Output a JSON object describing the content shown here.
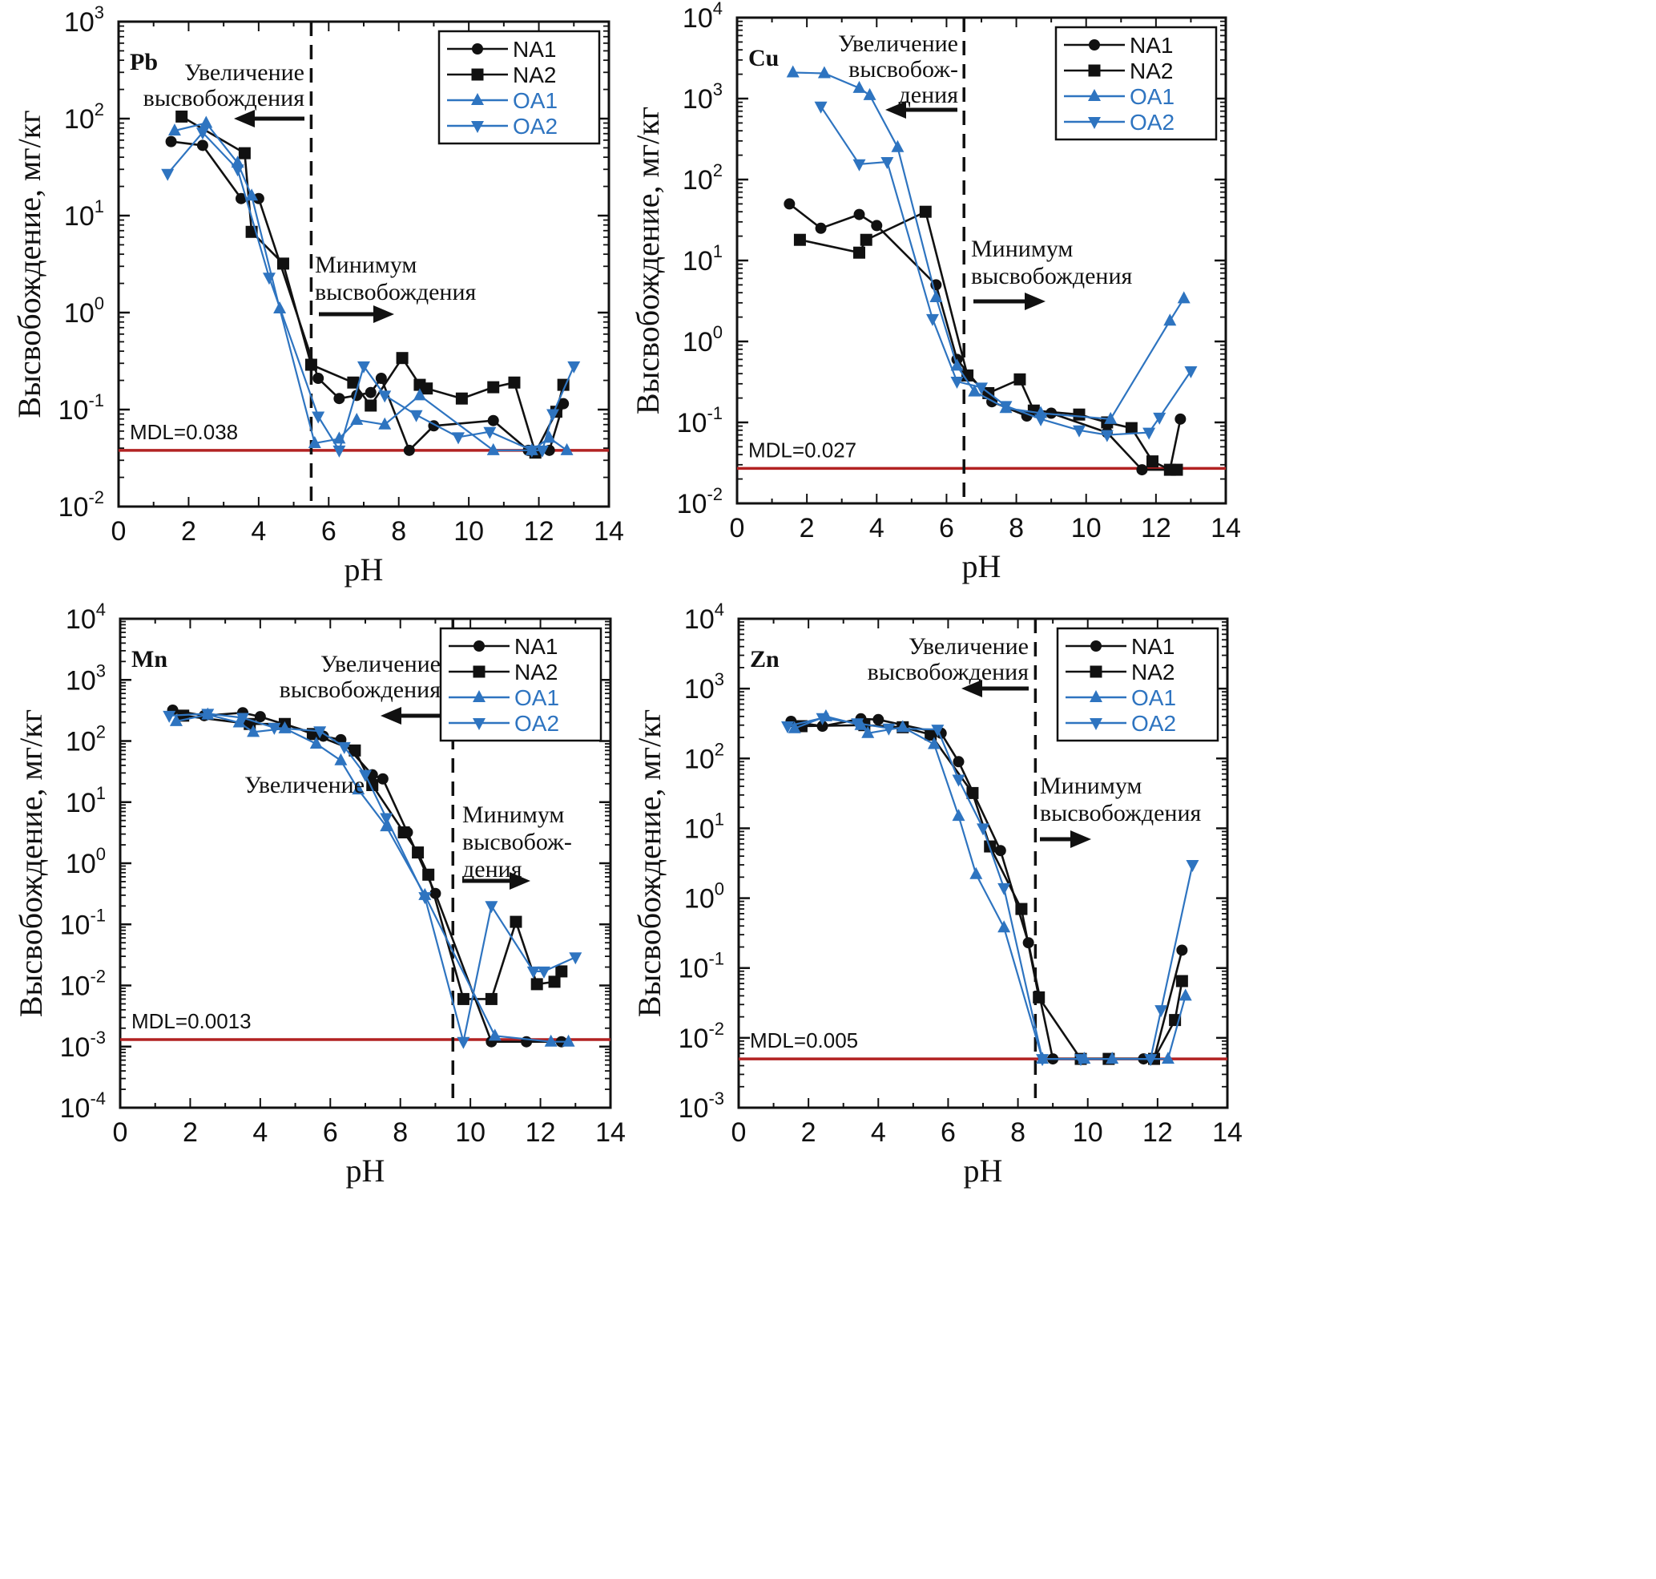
{
  "figure": {
    "stray_label": "Увеличение"
  },
  "chart_data": [
    {
      "type": "line",
      "panel": "Pb",
      "xlabel": "pH",
      "ylabel": "Высвобождение, мг/кг",
      "xscale": "linear",
      "yscale": "log",
      "xlim": [
        0,
        14
      ],
      "xticks": [
        0,
        2,
        4,
        6,
        8,
        10,
        12,
        14
      ],
      "ylim_exp": [
        -2,
        3
      ],
      "mdl": {
        "label": "MDL=0.038",
        "value": 0.038,
        "color": "#b22222"
      },
      "divider_ph": 5.5,
      "annotations": {
        "increase": [
          "Увеличение",
          "высвобождения"
        ],
        "minimum": [
          "Минимум",
          "высвобождения"
        ]
      },
      "legend": {
        "position": "top-right"
      },
      "series": [
        {
          "name": "NA1",
          "color": "#111111",
          "marker": "circle",
          "x": [
            1.5,
            2.4,
            3.5,
            4.0,
            5.7,
            6.3,
            6.8,
            7.2,
            7.5,
            8.3,
            9.0,
            10.7,
            11.7,
            12.3,
            12.7
          ],
          "y": [
            58,
            53,
            15,
            15,
            0.21,
            0.13,
            0.14,
            0.15,
            0.21,
            0.038,
            0.068,
            0.077,
            0.038,
            0.038,
            0.115
          ]
        },
        {
          "name": "NA2",
          "color": "#111111",
          "marker": "square",
          "x": [
            1.8,
            3.6,
            3.8,
            4.7,
            5.5,
            6.7,
            7.2,
            8.1,
            8.6,
            8.8,
            9.8,
            10.7,
            11.3,
            11.9,
            12.5,
            12.7
          ],
          "y": [
            105,
            44,
            6.8,
            3.2,
            0.29,
            0.19,
            0.11,
            0.34,
            0.18,
            0.165,
            0.13,
            0.17,
            0.19,
            0.036,
            0.095,
            0.18
          ]
        },
        {
          "name": "OA1",
          "color": "#2e74c0",
          "marker": "triangle-up",
          "x": [
            1.6,
            2.5,
            3.4,
            3.8,
            4.6,
            5.6,
            6.3,
            6.8,
            7.6,
            8.6,
            10.7,
            11.8,
            12.3,
            12.8
          ],
          "y": [
            75,
            90,
            35,
            16,
            1.1,
            0.045,
            0.05,
            0.078,
            0.07,
            0.14,
            0.038,
            0.038,
            0.051,
            0.038
          ]
        },
        {
          "name": "OA2",
          "color": "#2e74c0",
          "marker": "triangle-down",
          "x": [
            1.4,
            2.4,
            3.4,
            4.3,
            5.7,
            6.3,
            7.0,
            7.6,
            8.5,
            9.7,
            10.6,
            11.8,
            12.1,
            12.4,
            13.0
          ],
          "y": [
            27,
            72,
            30,
            2.3,
            0.085,
            0.038,
            0.28,
            0.14,
            0.088,
            0.052,
            0.059,
            0.038,
            0.038,
            0.09,
            0.28
          ]
        }
      ]
    },
    {
      "type": "line",
      "panel": "Cu",
      "xlabel": "pH",
      "ylabel": "Высвобождение, мг/кг",
      "xscale": "linear",
      "yscale": "log",
      "xlim": [
        0,
        14
      ],
      "xticks": [
        0,
        2,
        4,
        6,
        8,
        10,
        12,
        14
      ],
      "ylim_exp": [
        -2,
        4
      ],
      "mdl": {
        "label": "MDL=0.027",
        "value": 0.027,
        "color": "#b22222"
      },
      "divider_ph": 6.5,
      "annotations": {
        "increase": [
          "Увеличение",
          "высвобож-",
          "дения"
        ],
        "minimum": [
          "Минимум",
          "высвобождения"
        ]
      },
      "legend": {
        "position": "top-right"
      },
      "series": [
        {
          "name": "NA1",
          "color": "#111111",
          "marker": "circle",
          "x": [
            1.5,
            2.4,
            3.5,
            4.0,
            5.7,
            6.3,
            7.3,
            8.3,
            9.0,
            10.6,
            11.6,
            12.4,
            12.7
          ],
          "y": [
            50,
            25,
            37,
            27,
            5,
            0.6,
            0.18,
            0.12,
            0.13,
            0.075,
            0.026,
            0.026,
            0.11
          ]
        },
        {
          "name": "NA2",
          "color": "#111111",
          "marker": "square",
          "x": [
            1.8,
            3.5,
            3.7,
            5.4,
            6.6,
            7.2,
            8.1,
            8.5,
            9.8,
            10.6,
            11.3,
            11.9,
            12.4,
            12.6
          ],
          "y": [
            18,
            12.5,
            18,
            40,
            0.38,
            0.23,
            0.34,
            0.14,
            0.125,
            0.1,
            0.085,
            0.033,
            0.026,
            0.026
          ]
        },
        {
          "name": "OA1",
          "color": "#2e74c0",
          "marker": "triangle-up",
          "x": [
            1.6,
            2.5,
            3.5,
            3.8,
            4.6,
            5.7,
            6.3,
            6.8,
            7.7,
            8.7,
            10.7,
            12.4,
            12.8
          ],
          "y": [
            2100,
            2050,
            1350,
            1100,
            250,
            3.5,
            0.5,
            0.24,
            0.15,
            0.13,
            0.11,
            1.8,
            3.4
          ]
        },
        {
          "name": "OA2",
          "color": "#2e74c0",
          "marker": "triangle-down",
          "x": [
            2.4,
            3.5,
            4.3,
            5.6,
            6.3,
            7.0,
            7.7,
            8.7,
            9.8,
            10.6,
            11.8,
            12.1,
            13.0
          ],
          "y": [
            800,
            155,
            165,
            1.9,
            0.32,
            0.27,
            0.16,
            0.11,
            0.08,
            0.07,
            0.075,
            0.115,
            0.43
          ]
        }
      ]
    },
    {
      "type": "line",
      "panel": "Mn",
      "xlabel": "pH",
      "ylabel": "Высвобождение, мг/кг",
      "xscale": "linear",
      "yscale": "log",
      "xlim": [
        0,
        14
      ],
      "xticks": [
        0,
        2,
        4,
        6,
        8,
        10,
        12,
        14
      ],
      "ylim_exp": [
        -4,
        4
      ],
      "mdl": {
        "label": "MDL=0.0013",
        "value": 0.0013,
        "color": "#b22222"
      },
      "divider_ph": 9.5,
      "annotations": {
        "increase": [
          "Увеличение",
          "высвобождения"
        ],
        "minimum": [
          "Минимум",
          "высвобож-",
          "дения"
        ]
      },
      "legend": {
        "position": "top-right"
      },
      "series": [
        {
          "name": "NA1",
          "color": "#111111",
          "marker": "circle",
          "x": [
            1.5,
            2.4,
            3.5,
            4.0,
            5.8,
            6.3,
            7.2,
            7.5,
            8.2,
            9.0,
            10.6,
            11.6,
            12.6
          ],
          "y": [
            320,
            260,
            290,
            250,
            120,
            105,
            28,
            24,
            3.2,
            0.32,
            0.0012,
            0.0012,
            0.0012
          ]
        },
        {
          "name": "NA2",
          "color": "#111111",
          "marker": "square",
          "x": [
            1.8,
            3.7,
            4.7,
            5.5,
            6.7,
            7.2,
            8.1,
            8.5,
            8.8,
            9.8,
            10.6,
            11.3,
            11.9,
            12.4,
            12.6
          ],
          "y": [
            260,
            190,
            190,
            130,
            70,
            19,
            3.2,
            1.5,
            0.65,
            0.006,
            0.006,
            0.11,
            0.0105,
            0.0115,
            0.017
          ]
        },
        {
          "name": "OA1",
          "color": "#2e74c0",
          "marker": "triangle-up",
          "x": [
            1.6,
            2.5,
            3.4,
            3.8,
            4.7,
            5.6,
            6.3,
            6.8,
            7.6,
            8.7,
            10.7,
            12.3,
            12.8
          ],
          "y": [
            210,
            270,
            200,
            140,
            160,
            90,
            48,
            16,
            4,
            0.3,
            0.0015,
            0.0012,
            0.0012
          ]
        },
        {
          "name": "OA2",
          "color": "#2e74c0",
          "marker": "triangle-down",
          "x": [
            1.4,
            2.5,
            3.5,
            4.4,
            5.7,
            6.4,
            7.0,
            7.6,
            8.7,
            9.8,
            10.6,
            11.8,
            12.1,
            13.0
          ],
          "y": [
            260,
            280,
            240,
            165,
            145,
            80,
            28,
            5.5,
            0.28,
            0.0012,
            0.2,
            0.017,
            0.017,
            0.029
          ]
        }
      ]
    },
    {
      "type": "line",
      "panel": "Zn",
      "xlabel": "pH",
      "ylabel": "Высвобождение, мг/кг",
      "xscale": "linear",
      "yscale": "log",
      "xlim": [
        0,
        14
      ],
      "xticks": [
        0,
        2,
        4,
        6,
        8,
        10,
        12,
        14
      ],
      "ylim_exp": [
        -3,
        4
      ],
      "mdl": {
        "label": "MDL=0.005",
        "value": 0.005,
        "color": "#b22222"
      },
      "divider_ph": 8.5,
      "annotations": {
        "increase": [
          "Увеличение",
          "высвобождения"
        ],
        "minimum": [
          "Минимум",
          "высвобождения"
        ]
      },
      "legend": {
        "position": "top-right"
      },
      "series": [
        {
          "name": "NA1",
          "color": "#111111",
          "marker": "circle",
          "x": [
            1.5,
            2.4,
            3.5,
            4.0,
            5.8,
            6.3,
            7.5,
            8.3,
            9.0,
            10.6,
            11.6,
            11.9,
            12.7
          ],
          "y": [
            340,
            290,
            370,
            360,
            230,
            90,
            4.8,
            0.23,
            0.005,
            0.005,
            0.005,
            0.005,
            0.18
          ]
        },
        {
          "name": "NA2",
          "color": "#111111",
          "marker": "square",
          "x": [
            1.8,
            3.6,
            4.7,
            5.5,
            6.7,
            7.2,
            8.1,
            8.6,
            9.8,
            10.6,
            11.9,
            12.5,
            12.7
          ],
          "y": [
            290,
            300,
            280,
            220,
            32,
            5.5,
            0.7,
            0.038,
            0.005,
            0.005,
            0.005,
            0.018,
            0.065
          ]
        },
        {
          "name": "OA1",
          "color": "#2e74c0",
          "marker": "triangle-up",
          "x": [
            1.6,
            2.5,
            3.5,
            3.7,
            4.7,
            5.6,
            6.3,
            6.8,
            7.6,
            8.7,
            9.9,
            10.7,
            12.3,
            12.8
          ],
          "y": [
            270,
            400,
            300,
            230,
            280,
            160,
            15,
            2.2,
            0.38,
            0.005,
            0.005,
            0.005,
            0.005,
            0.04
          ]
        },
        {
          "name": "OA2",
          "color": "#2e74c0",
          "marker": "triangle-down",
          "x": [
            1.4,
            2.4,
            3.4,
            4.3,
            5.7,
            6.3,
            7.0,
            7.6,
            8.7,
            9.8,
            11.8,
            12.1,
            13.0
          ],
          "y": [
            290,
            380,
            320,
            270,
            260,
            50,
            10,
            1.4,
            0.005,
            0.005,
            0.005,
            0.025,
            3.0
          ]
        }
      ]
    }
  ]
}
